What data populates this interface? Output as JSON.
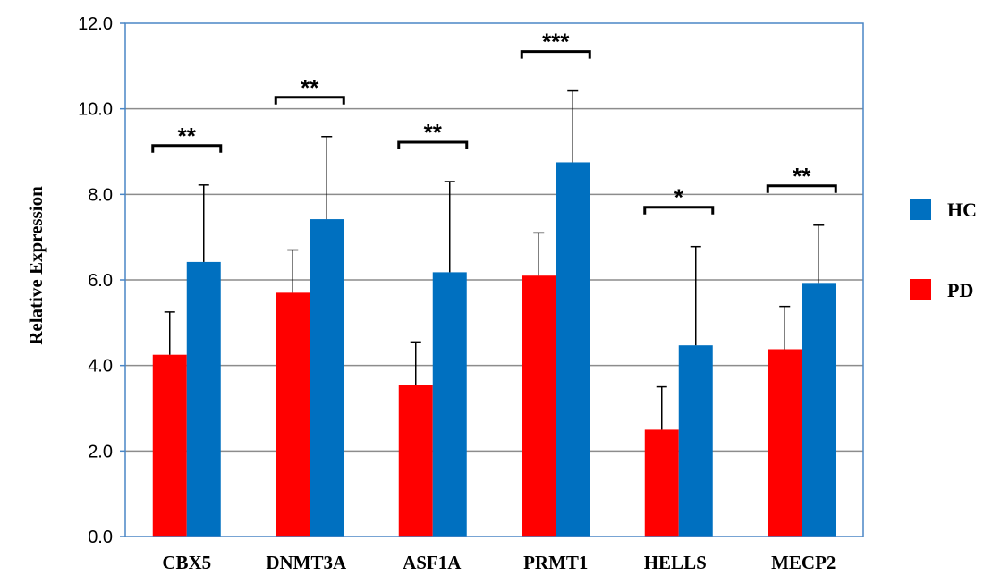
{
  "chart_data": {
    "type": "bar",
    "ylabel": "Relative Expression",
    "ylim": [
      0,
      12
    ],
    "yticks": [
      "0.0",
      "2.0",
      "4.0",
      "6.0",
      "8.0",
      "10.0",
      "12.0"
    ],
    "grid": true,
    "legend_position": "right",
    "categories": [
      "CBX5",
      "DNMT3A",
      "ASF1A",
      "PRMT1",
      "HELLS",
      "MECP2"
    ],
    "series": [
      {
        "name": "PD",
        "color": "#ff0000",
        "values": [
          4.25,
          5.7,
          3.55,
          6.1,
          2.5,
          4.38
        ],
        "error_upper": [
          5.25,
          6.7,
          4.55,
          7.1,
          3.5,
          5.38
        ]
      },
      {
        "name": "HC",
        "color": "#0070c0",
        "values": [
          6.42,
          7.42,
          6.18,
          8.75,
          4.47,
          5.93
        ],
        "error_upper": [
          8.22,
          9.35,
          8.3,
          10.42,
          6.78,
          7.28
        ]
      }
    ],
    "significance": [
      "**",
      "**",
      "**",
      "***",
      "*",
      "**"
    ],
    "legend_order": [
      "HC",
      "PD"
    ]
  }
}
